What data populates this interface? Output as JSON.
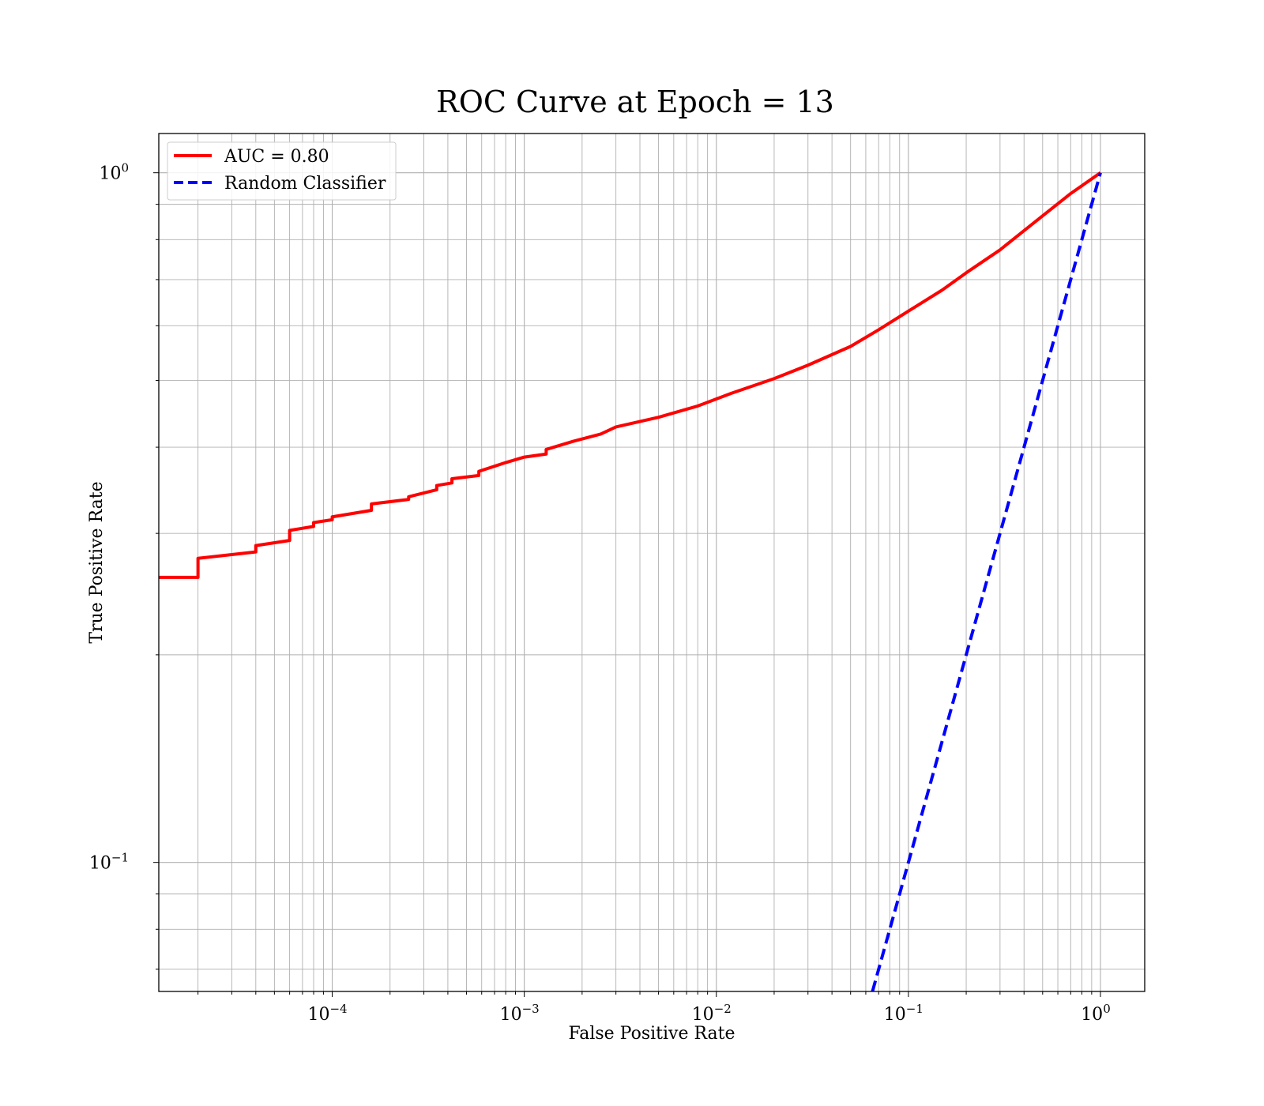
{
  "chart_data": {
    "type": "line",
    "title": "ROC Curve at Epoch = 13",
    "xlabel": "False Positive Rate",
    "ylabel": "True Positive Rate",
    "xscale": "log",
    "yscale": "log",
    "xlim": [
      1.25e-05,
      1.7
    ],
    "ylim": [
      0.065,
      1.14
    ],
    "grid": "on (major and minor)",
    "legend_position": "upper-left",
    "x_ticks": [
      {
        "value": 0.0001,
        "base": "10",
        "exp": "−4"
      },
      {
        "value": 0.001,
        "base": "10",
        "exp": "−3"
      },
      {
        "value": 0.01,
        "base": "10",
        "exp": "−2"
      },
      {
        "value": 0.1,
        "base": "10",
        "exp": "−1"
      },
      {
        "value": 1,
        "base": "10",
        "exp": "0"
      }
    ],
    "y_ticks": [
      {
        "value": 0.1,
        "base": "10",
        "exp": "−1"
      },
      {
        "value": 1,
        "base": "10",
        "exp": "0"
      }
    ],
    "series": [
      {
        "name": "AUC = 0.80",
        "color": "#ff0000",
        "style": "solid",
        "points": [
          [
            1.25e-05,
            0.259
          ],
          [
            2e-05,
            0.259
          ],
          [
            2e-05,
            0.276
          ],
          [
            4e-05,
            0.282
          ],
          [
            4e-05,
            0.288
          ],
          [
            6e-05,
            0.293
          ],
          [
            6e-05,
            0.303
          ],
          [
            8e-05,
            0.307
          ],
          [
            8e-05,
            0.311
          ],
          [
            0.0001,
            0.314
          ],
          [
            0.0001,
            0.317
          ],
          [
            0.00016,
            0.324
          ],
          [
            0.00016,
            0.331
          ],
          [
            0.00025,
            0.336
          ],
          [
            0.00025,
            0.339
          ],
          [
            0.00035,
            0.347
          ],
          [
            0.00035,
            0.352
          ],
          [
            0.00042,
            0.355
          ],
          [
            0.00042,
            0.36
          ],
          [
            0.00058,
            0.364
          ],
          [
            0.00058,
            0.369
          ],
          [
            0.0008,
            0.38
          ],
          [
            0.001,
            0.387
          ],
          [
            0.0013,
            0.391
          ],
          [
            0.0013,
            0.397
          ],
          [
            0.0018,
            0.408
          ],
          [
            0.0025,
            0.418
          ],
          [
            0.003,
            0.428
          ],
          [
            0.005,
            0.442
          ],
          [
            0.008,
            0.459
          ],
          [
            0.012,
            0.479
          ],
          [
            0.02,
            0.503
          ],
          [
            0.03,
            0.526
          ],
          [
            0.05,
            0.56
          ],
          [
            0.07,
            0.592
          ],
          [
            0.1,
            0.63
          ],
          [
            0.15,
            0.676
          ],
          [
            0.2,
            0.716
          ],
          [
            0.3,
            0.773
          ],
          [
            0.5,
            0.866
          ],
          [
            0.7,
            0.933
          ],
          [
            1.0,
            1.0
          ]
        ]
      },
      {
        "name": "Random Classifier",
        "color": "#0000ff",
        "style": "dashed",
        "points": [
          [
            0.065,
            0.065
          ],
          [
            1.0,
            1.0
          ]
        ]
      }
    ]
  }
}
